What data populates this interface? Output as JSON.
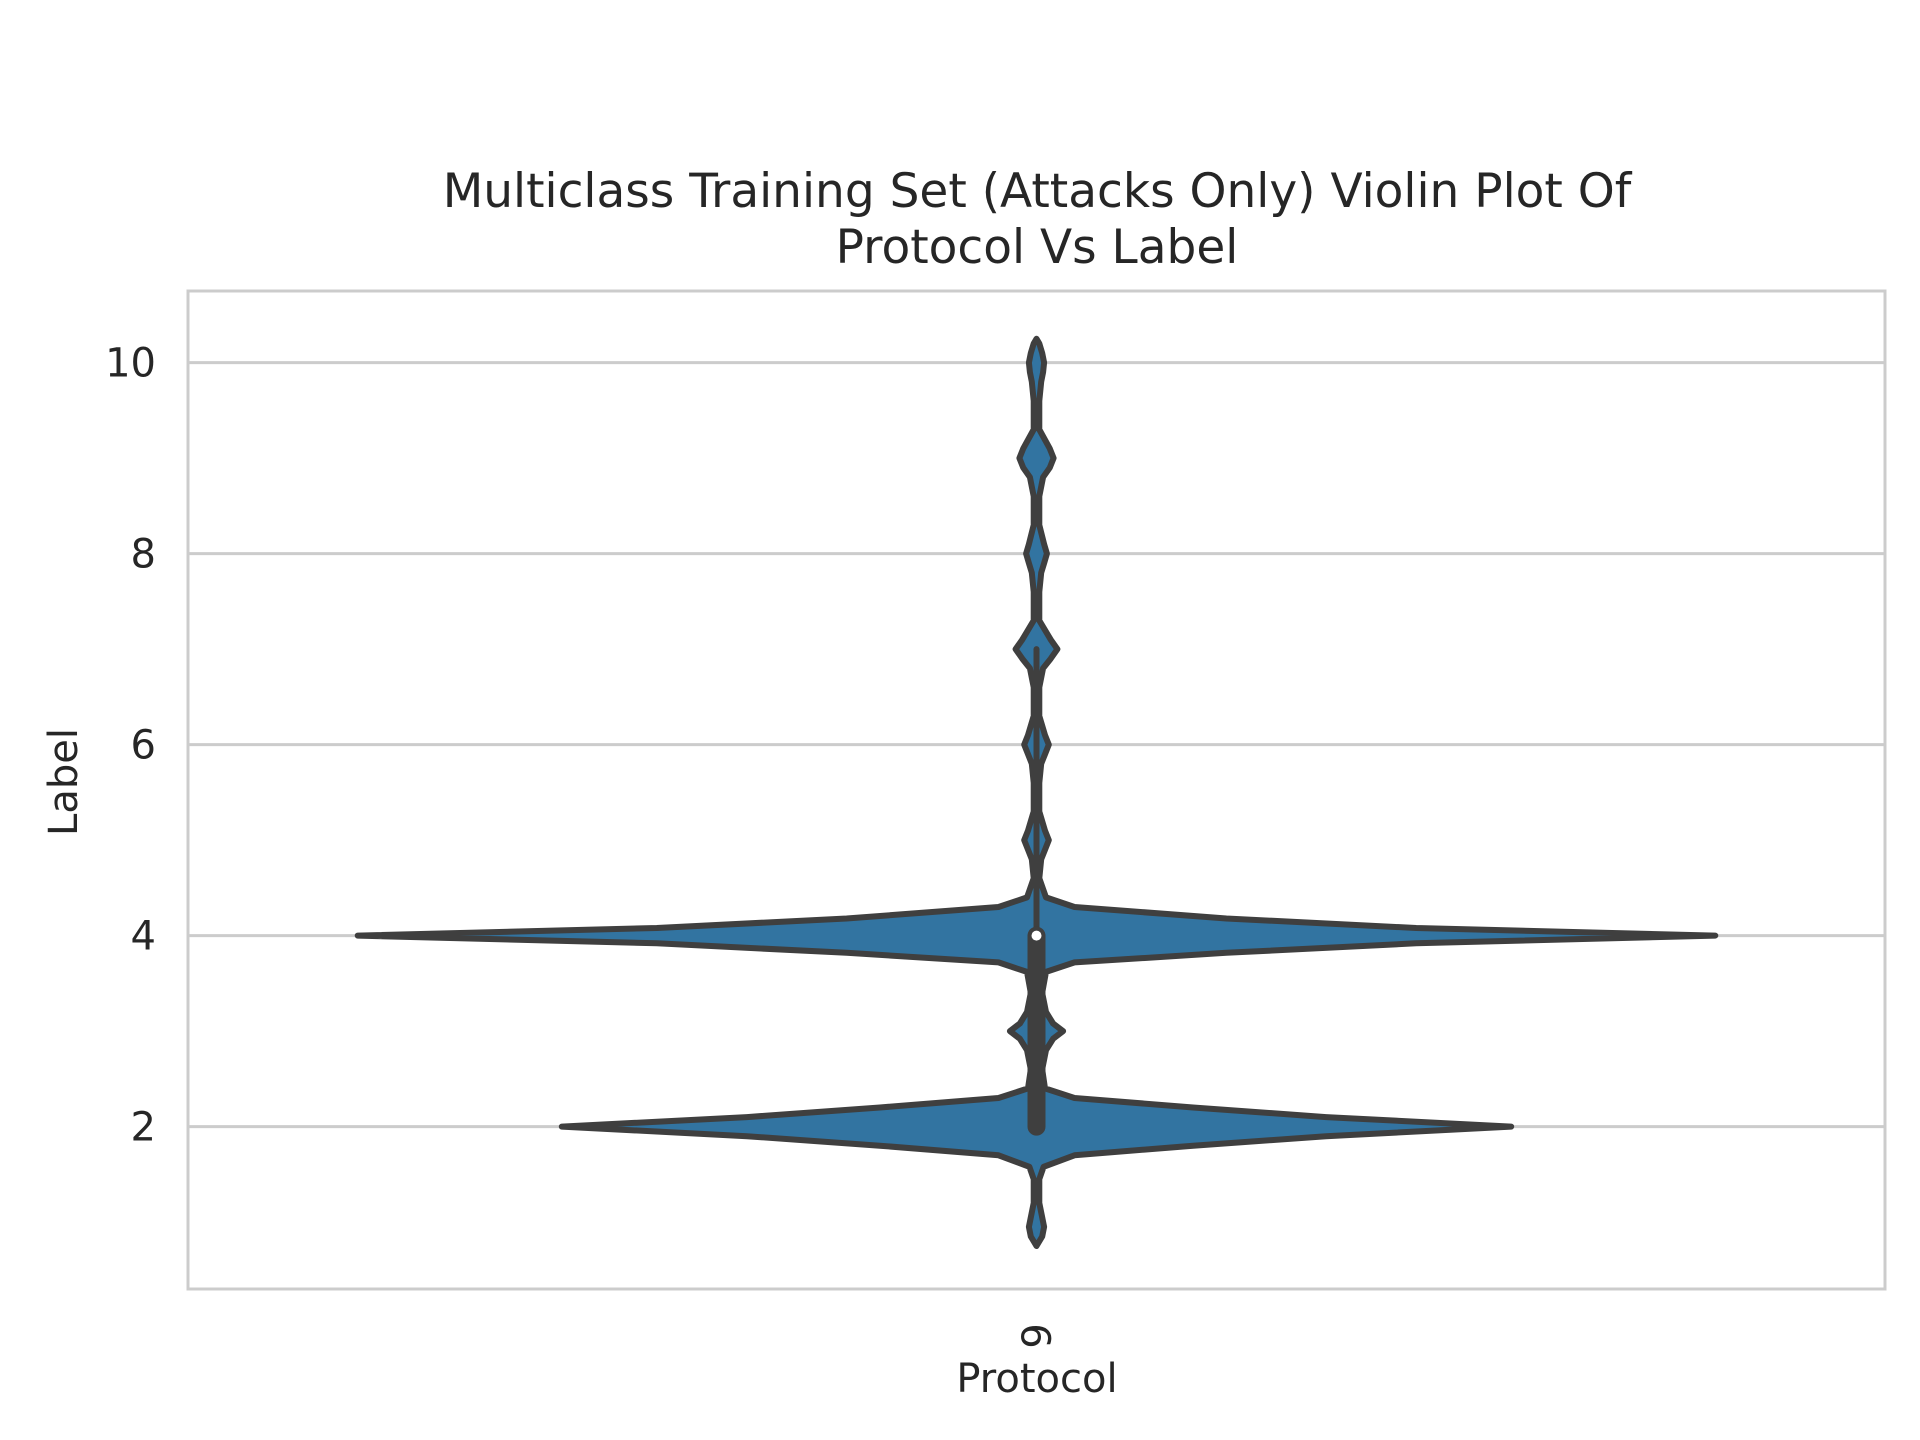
{
  "chart_data": {
    "type": "violin",
    "title_lines": [
      "Multiclass Training Set  (Attacks Only) Violin Plot Of",
      "Protocol Vs  Label"
    ],
    "xlabel": "Protocol",
    "ylabel": "Label",
    "categories": [
      "6"
    ],
    "ylim": [
      0.3,
      10.75
    ],
    "yticks": [
      2,
      4,
      6,
      8,
      10
    ],
    "grid": true,
    "colors": {
      "violin": "#3274a1",
      "edge": "#3f3f3f",
      "grid": "#cccccc",
      "text": "#262626"
    },
    "violins": [
      {
        "category": "6",
        "density_profile": [
          [
            0.75,
            0.0
          ],
          [
            0.85,
            0.012
          ],
          [
            0.95,
            0.016
          ],
          [
            1.05,
            0.012
          ],
          [
            1.2,
            0.006
          ],
          [
            1.45,
            0.006
          ],
          [
            1.58,
            0.015
          ],
          [
            1.7,
            0.08
          ],
          [
            1.8,
            0.33
          ],
          [
            1.9,
            0.61
          ],
          [
            2.0,
            1.0
          ],
          [
            2.1,
            0.61
          ],
          [
            2.2,
            0.33
          ],
          [
            2.3,
            0.08
          ],
          [
            2.4,
            0.018
          ],
          [
            2.6,
            0.012
          ],
          [
            2.8,
            0.02
          ],
          [
            2.92,
            0.035
          ],
          [
            3.0,
            0.056
          ],
          [
            3.08,
            0.035
          ],
          [
            3.2,
            0.02
          ],
          [
            3.4,
            0.012
          ],
          [
            3.62,
            0.02
          ],
          [
            3.72,
            0.08
          ],
          [
            3.82,
            0.4
          ],
          [
            3.92,
            0.8
          ],
          [
            4.0,
            1.43
          ],
          [
            4.08,
            0.8
          ],
          [
            4.18,
            0.4
          ],
          [
            4.3,
            0.08
          ],
          [
            4.4,
            0.02
          ],
          [
            4.6,
            0.006
          ],
          [
            4.8,
            0.01
          ],
          [
            4.9,
            0.018
          ],
          [
            5.0,
            0.026
          ],
          [
            5.1,
            0.018
          ],
          [
            5.3,
            0.006
          ],
          [
            5.6,
            0.006
          ],
          [
            5.8,
            0.01
          ],
          [
            5.9,
            0.018
          ],
          [
            6.0,
            0.026
          ],
          [
            6.1,
            0.018
          ],
          [
            6.3,
            0.006
          ],
          [
            6.6,
            0.006
          ],
          [
            6.8,
            0.014
          ],
          [
            6.9,
            0.03
          ],
          [
            7.0,
            0.044
          ],
          [
            7.1,
            0.03
          ],
          [
            7.3,
            0.006
          ],
          [
            7.6,
            0.006
          ],
          [
            7.8,
            0.01
          ],
          [
            7.9,
            0.016
          ],
          [
            8.0,
            0.022
          ],
          [
            8.1,
            0.016
          ],
          [
            8.3,
            0.006
          ],
          [
            8.6,
            0.006
          ],
          [
            8.8,
            0.014
          ],
          [
            8.9,
            0.028
          ],
          [
            9.0,
            0.036
          ],
          [
            9.1,
            0.028
          ],
          [
            9.3,
            0.006
          ],
          [
            9.6,
            0.006
          ],
          [
            9.8,
            0.01
          ],
          [
            9.9,
            0.014
          ],
          [
            10.0,
            0.016
          ],
          [
            10.1,
            0.012
          ],
          [
            10.2,
            0.006
          ],
          [
            10.25,
            0.0
          ]
        ],
        "whisker": [
          2,
          7
        ],
        "quartiles": [
          2,
          4
        ],
        "median": 4
      }
    ]
  }
}
